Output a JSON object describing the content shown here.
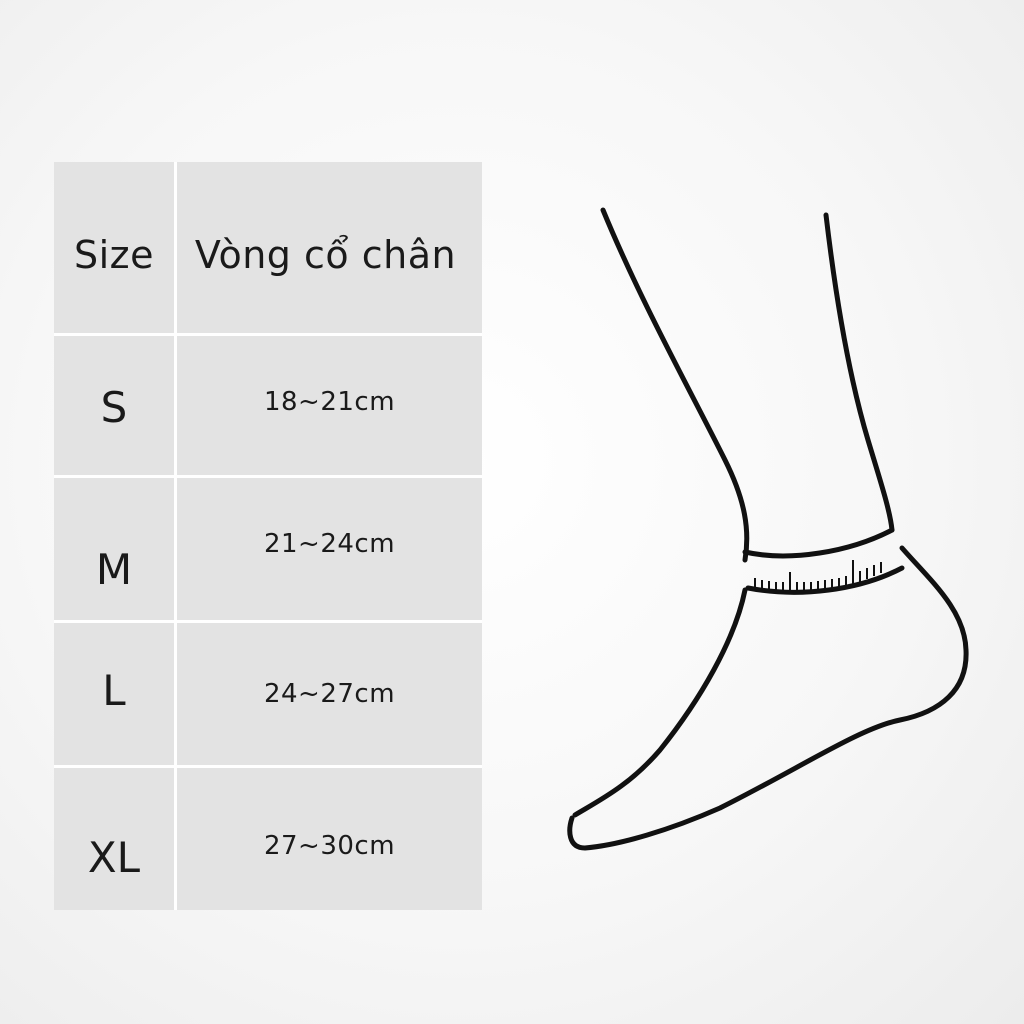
{
  "table": {
    "header": {
      "size": "Size",
      "ankle": "Vòng cổ chân"
    },
    "rows": [
      {
        "size": "S",
        "measure": "18~21cm"
      },
      {
        "size": "M",
        "measure": "21~24cm"
      },
      {
        "size": "L",
        "measure": "24~27cm"
      },
      {
        "size": "XL",
        "measure": "27~30cm"
      }
    ]
  },
  "illustration": {
    "icon": "foot-ankle-measuring-tape-icon",
    "line_color": "#111111"
  }
}
